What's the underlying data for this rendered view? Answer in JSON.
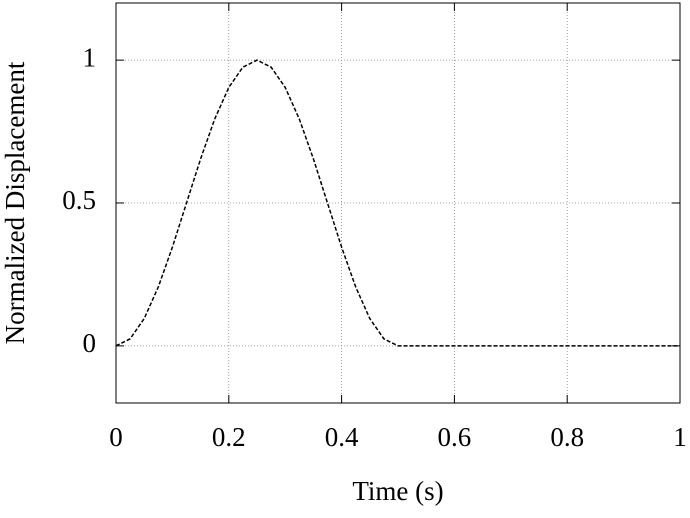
{
  "chart_data": {
    "type": "line",
    "x_label": "Time (s)",
    "y_label": "Normalized Displacement",
    "x": [
      0,
      0.025,
      0.05,
      0.075,
      0.1,
      0.125,
      0.15,
      0.175,
      0.2,
      0.225,
      0.25,
      0.275,
      0.3,
      0.325,
      0.35,
      0.375,
      0.4,
      0.425,
      0.45,
      0.475,
      0.5,
      0.6,
      0.7,
      0.8,
      0.9,
      1
    ],
    "series": [
      {
        "color": "#000000",
        "dashed": true,
        "values": [
          0,
          0.0245,
          0.0955,
          0.2061,
          0.3455,
          0.5,
          0.6545,
          0.7939,
          0.9045,
          0.9755,
          1,
          0.9755,
          0.9045,
          0.7939,
          0.6545,
          0.5,
          0.3455,
          0.2061,
          0.0955,
          0.0245,
          0,
          0,
          0,
          0,
          0,
          0
        ]
      }
    ],
    "xlim": [
      0,
      1
    ],
    "ylim": [
      -0.2,
      1.2
    ],
    "xticks": [
      0,
      0.2,
      0.4,
      0.6,
      0.8,
      1
    ],
    "yticks": [
      0,
      0.5,
      1
    ],
    "grid": true
  }
}
